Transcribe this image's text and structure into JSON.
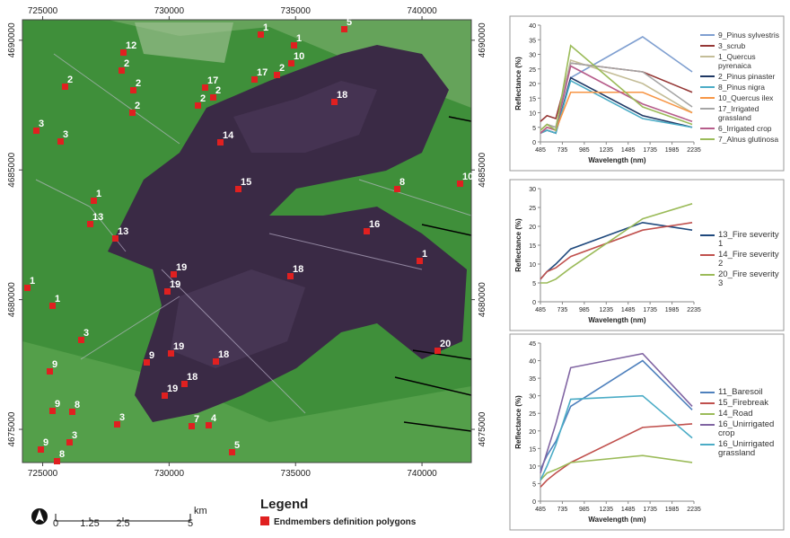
{
  "map": {
    "xticks": [
      725000,
      730000,
      735000,
      740000
    ],
    "xlim": [
      724200,
      741950
    ],
    "yticks": [
      4690000,
      4685000,
      4680000,
      4675000
    ],
    "ylim": [
      4673720,
      4690790
    ],
    "polygon_labels": [
      "12",
      "2",
      "2",
      "2",
      "2",
      "3",
      "3",
      "1",
      "1",
      "5",
      "10",
      "17",
      "2",
      "17",
      "2",
      "2",
      "18",
      "14",
      "15",
      "8",
      "10",
      "1",
      "13",
      "13",
      "16",
      "1",
      "19",
      "19",
      "18",
      "1",
      "1",
      "3",
      "19",
      "18",
      "9",
      "9",
      "18",
      "19",
      "20",
      "9",
      "8",
      "3",
      "7",
      "4",
      "5",
      "3",
      "9",
      "8"
    ],
    "scale_bar": {
      "labels": [
        "0",
        "1.25",
        "2.5",
        "5"
      ],
      "unit": "km"
    },
    "legend": {
      "title": "Legend",
      "item": "Endmembers definition polygons"
    }
  },
  "chart_data": [
    {
      "type": "line",
      "y_label": "Reflectance (%)",
      "x_label": "Wavelength (nm)",
      "x": [
        485,
        560,
        660,
        830,
        1650,
        2215
      ],
      "xlim": [
        485,
        2235
      ],
      "xticks": [
        485,
        735,
        985,
        1235,
        1485,
        1735,
        1985,
        2235
      ],
      "ylim": [
        0,
        40
      ],
      "yticks": [
        0,
        5,
        10,
        15,
        20,
        25,
        30,
        35,
        40
      ],
      "series": [
        {
          "name": "9_Pinus sylvestris",
          "color": "#7f9fd0",
          "values": [
            3,
            4,
            3,
            22,
            36,
            24
          ]
        },
        {
          "name": "3_scrub",
          "color": "#953735",
          "values": [
            7,
            9,
            8,
            27,
            24,
            17
          ]
        },
        {
          "name": "1_Quercus pyrenaica",
          "color": "#c4bd97",
          "values": [
            4,
            6,
            5,
            28,
            20,
            10
          ]
        },
        {
          "name": "2_Pinus pinaster",
          "color": "#1f3864",
          "values": [
            3,
            4,
            3,
            22,
            9,
            5
          ]
        },
        {
          "name": "8_Pinus nigra",
          "color": "#4bacc6",
          "values": [
            3,
            4,
            3,
            21,
            8,
            5
          ]
        },
        {
          "name": "10_Quercus ilex",
          "color": "#f79646",
          "values": [
            3,
            5,
            4,
            17,
            17,
            10
          ]
        },
        {
          "name": "17_Irrigated grassland",
          "color": "#a5a5a5",
          "values": [
            4,
            6,
            5,
            27,
            24,
            12
          ]
        },
        {
          "name": "6_Irrigated crop",
          "color": "#b65c8a",
          "values": [
            3,
            5,
            4,
            26,
            13,
            7
          ]
        },
        {
          "name": "7_Alnus glutinosa",
          "color": "#9bbb59",
          "values": [
            4,
            6,
            4,
            33,
            12,
            6
          ]
        }
      ]
    },
    {
      "type": "line",
      "y_label": "Reflectance (%)",
      "x_label": "Wavelength (nm)",
      "x": [
        485,
        560,
        660,
        830,
        1650,
        2215
      ],
      "xlim": [
        485,
        2235
      ],
      "xticks": [
        485,
        735,
        985,
        1235,
        1485,
        1735,
        1985,
        2235
      ],
      "ylim": [
        0,
        30
      ],
      "yticks": [
        0,
        5,
        10,
        15,
        20,
        25,
        30
      ],
      "series": [
        {
          "name": "13_Fire severity 1",
          "color": "#1f497d",
          "values": [
            6,
            8,
            10,
            14,
            21,
            19
          ]
        },
        {
          "name": "14_Fire severity 2",
          "color": "#c0504d",
          "values": [
            6,
            8,
            9,
            12,
            19,
            21
          ]
        },
        {
          "name": "20_Fire severity 3",
          "color": "#9bbb59",
          "values": [
            5,
            5,
            6,
            9,
            22,
            26
          ]
        }
      ]
    },
    {
      "type": "line",
      "y_label": "Reflectance (%)",
      "x_label": "Wavelength (nm)",
      "x": [
        485,
        560,
        660,
        830,
        1650,
        2215
      ],
      "xlim": [
        485,
        2235
      ],
      "xticks": [
        485,
        735,
        985,
        1235,
        1485,
        1735,
        1985,
        2235
      ],
      "ylim": [
        0,
        45
      ],
      "yticks": [
        0,
        5,
        10,
        15,
        20,
        25,
        30,
        35,
        40,
        45
      ],
      "series": [
        {
          "name": "11_Baresoil",
          "color": "#4f81bd",
          "values": [
            9,
            13,
            17,
            27,
            40,
            26
          ]
        },
        {
          "name": "15_Firebreak",
          "color": "#c0504d",
          "values": [
            4,
            6,
            8,
            11,
            21,
            22
          ]
        },
        {
          "name": "14_Road",
          "color": "#9bbb59",
          "values": [
            6,
            8,
            9,
            11,
            13,
            11
          ]
        },
        {
          "name": "16_Unirrigated crop",
          "color": "#8064a2",
          "values": [
            8,
            14,
            22,
            38,
            42,
            27
          ]
        },
        {
          "name": "16_Unirrigated grassland",
          "color": "#4bacc6",
          "values": [
            6,
            10,
            16,
            29,
            30,
            18
          ]
        }
      ]
    }
  ]
}
